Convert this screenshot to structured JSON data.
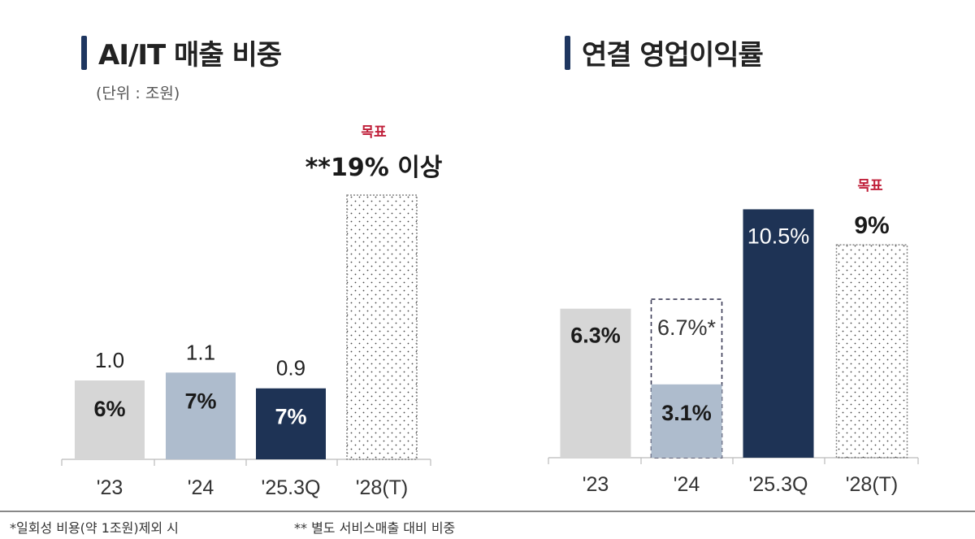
{
  "footnotes": {
    "left": "*일회성 비용(약 1조원)제외 시",
    "right": "** 별도 서비스매출 대비 비중"
  },
  "chart_data": [
    {
      "type": "bar",
      "title": "AI/IT 매출 비중",
      "subtitle": "(단위 : 조원)",
      "categories": [
        "'23",
        "'24",
        "'25.3Q",
        "'28(T)"
      ],
      "values": [
        1.0,
        1.1,
        0.9,
        null
      ],
      "share_labels": [
        "6%",
        "7%",
        "7%",
        ""
      ],
      "target": {
        "label": "목표",
        "value_label": "**19% 이상"
      },
      "colors": [
        "#d6d6d6",
        "#aebccd",
        "#1e3355",
        "dotted"
      ]
    },
    {
      "type": "bar",
      "title": "연결 영업이익률",
      "categories": [
        "'23",
        "'24",
        "'25.3Q",
        "'28(T)"
      ],
      "values": [
        6.3,
        3.1,
        10.5,
        9
      ],
      "value_labels": [
        "6.3%",
        "3.1%",
        "10.5%",
        "9%"
      ],
      "adjusted": {
        "category": "'24",
        "value": 6.7,
        "label": "6.7%*"
      },
      "target": {
        "label": "목표"
      },
      "colors": [
        "#d6d6d6",
        "#aebccd",
        "#1e3355",
        "dotted"
      ]
    }
  ]
}
